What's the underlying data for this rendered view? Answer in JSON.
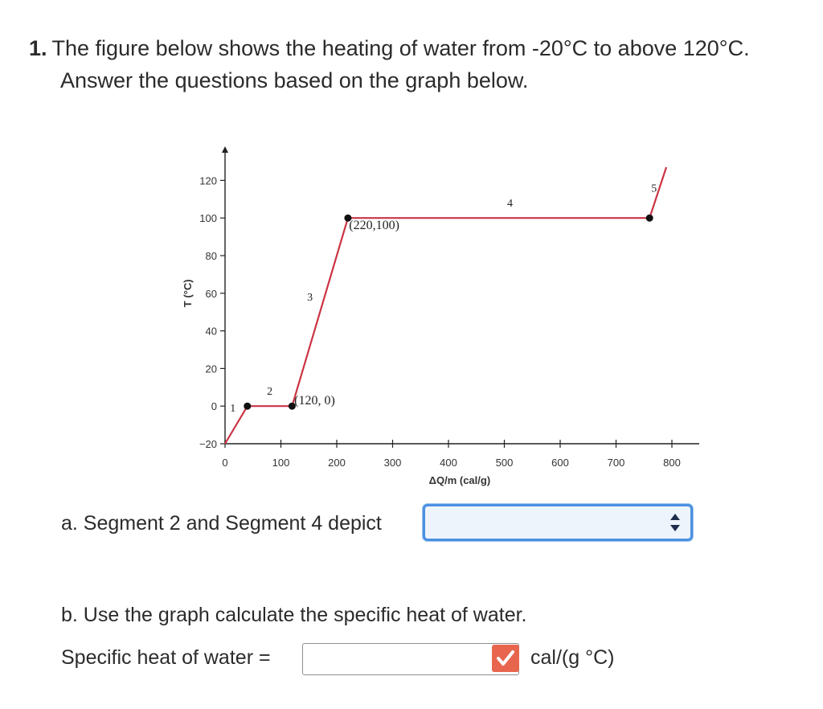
{
  "question": {
    "number": "1.",
    "line1": "The figure below shows the heating of water from -20°C to above 120°C.",
    "line2": "Answer the questions based on the graph below."
  },
  "part_a": {
    "text": "a. Segment 2 and Segment 4 depict",
    "selected": ""
  },
  "part_b": {
    "text": "b. Use the graph calculate the specific heat of water.",
    "label": "Specific heat of water =",
    "value": "",
    "unit": "cal/(g °C)"
  },
  "colors": {
    "line": "#cc3344",
    "select_border": "#4a90e2",
    "check_badge": "#e8664e"
  },
  "chart_data": {
    "type": "line",
    "xlabel": "ΔQ/m (cal/g)",
    "ylabel": "T (°C)",
    "xlim": [
      0,
      850
    ],
    "ylim": [
      -20,
      127
    ],
    "xticks": [
      0,
      100,
      200,
      300,
      400,
      500,
      600,
      700,
      800
    ],
    "yticks": [
      -20,
      0,
      20,
      40,
      60,
      80,
      100,
      120
    ],
    "series": [
      {
        "values": [
          [
            0,
            -20
          ],
          [
            40,
            0
          ],
          [
            120,
            0
          ],
          [
            220,
            100
          ],
          [
            760,
            100
          ],
          [
            790,
            127
          ]
        ]
      }
    ],
    "points": [
      [
        40,
        0
      ],
      [
        120,
        0
      ],
      [
        220,
        100
      ],
      [
        760,
        100
      ]
    ],
    "segment_labels": [
      {
        "text": "1",
        "x": 14,
        "y": -3
      },
      {
        "text": "2",
        "x": 80,
        "y": 6
      },
      {
        "text": "3",
        "x": 152,
        "y": 56
      },
      {
        "text": "4",
        "x": 510,
        "y": 106
      },
      {
        "text": "5",
        "x": 768,
        "y": 114
      }
    ],
    "annotations": [
      {
        "text": "(220,100)",
        "x": 222,
        "y": 94
      },
      {
        "text": "(120, 0)",
        "x": 124,
        "y": 1
      }
    ]
  }
}
